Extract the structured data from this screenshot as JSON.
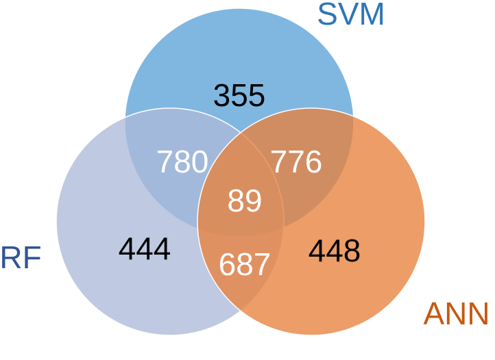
{
  "chart_data": {
    "type": "venn",
    "sets": [
      {
        "name": "SVM",
        "color": "#5ba3d9",
        "label_color": "#2e75b6"
      },
      {
        "name": "RF",
        "color": "#adbad8",
        "label_color": "#2f5597"
      },
      {
        "name": "ANN",
        "color": "#e8813e",
        "label_color": "#c55a11"
      }
    ],
    "regions": [
      {
        "sets": [
          "SVM"
        ],
        "value": 355
      },
      {
        "sets": [
          "SVM",
          "RF"
        ],
        "value": 780
      },
      {
        "sets": [
          "SVM",
          "ANN"
        ],
        "value": 776
      },
      {
        "sets": [
          "SVM",
          "RF",
          "ANN"
        ],
        "value": 89
      },
      {
        "sets": [
          "RF"
        ],
        "value": 444
      },
      {
        "sets": [
          "RF",
          "ANN"
        ],
        "value": 687
      },
      {
        "sets": [
          "ANN"
        ],
        "value": 448
      }
    ]
  }
}
